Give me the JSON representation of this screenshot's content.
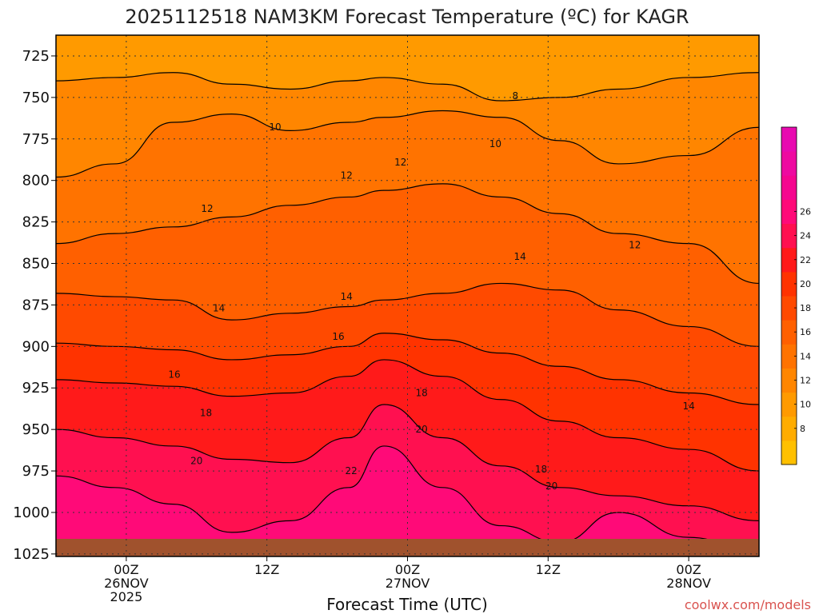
{
  "chart_data": {
    "type": "contour",
    "title": "2025112518 NAM3KM Forecast Temperature (ºC) for KAGR",
    "xlabel": "Forecast Time (UTC)",
    "ylabel": "",
    "credit": "coolwx.com/models",
    "y_ticks": [
      "725",
      "750",
      "775",
      "800",
      "825",
      "850",
      "875",
      "900",
      "925",
      "950",
      "975",
      "1000",
      "1025"
    ],
    "y_values": [
      725,
      750,
      775,
      800,
      825,
      850,
      875,
      900,
      925,
      950,
      975,
      1000,
      1025
    ],
    "ylim": [
      1025,
      725
    ],
    "x_ticks": [
      {
        "hour": 6,
        "l1": "00Z",
        "l2": "26NOV",
        "l3": "2025"
      },
      {
        "hour": 18,
        "l1": "12Z",
        "l2": "",
        "l3": ""
      },
      {
        "hour": 30,
        "l1": "00Z",
        "l2": "27NOV",
        "l3": ""
      },
      {
        "hour": 42,
        "l1": "12Z",
        "l2": "",
        "l3": ""
      },
      {
        "hour": 54,
        "l1": "00Z",
        "l2": "28NOV",
        "l3": ""
      }
    ],
    "xlim": [
      0,
      60
    ],
    "colorbar": {
      "levels": [
        6,
        8,
        10,
        12,
        14,
        16,
        18,
        20,
        22,
        24,
        26,
        28
      ],
      "labels": [
        "8",
        "10",
        "12",
        "14",
        "16",
        "18",
        "20",
        "22",
        "24",
        "26"
      ],
      "colors": [
        "#ffc000",
        "#ffac00",
        "#ff9a00",
        "#ff8600",
        "#ff7300",
        "#ff6000",
        "#ff4a00",
        "#ff3300",
        "#ff1a1a",
        "#ff1050",
        "#ff0a78",
        "#f5068f",
        "#ee0aa0",
        "#e80ab0"
      ]
    },
    "band_temps": [
      8,
      10,
      12,
      14,
      16,
      18,
      20,
      22
    ],
    "band_boundaries": [
      {
        "temp": 8,
        "pressure": [
          740,
          738,
          735,
          742,
          745,
          740,
          738,
          742,
          752,
          750,
          745,
          738,
          735
        ]
      },
      {
        "temp": 10,
        "pressure": [
          798,
          790,
          765,
          760,
          770,
          765,
          762,
          758,
          762,
          776,
          790,
          785,
          768
        ]
      },
      {
        "temp": 12,
        "pressure": [
          838,
          832,
          828,
          822,
          815,
          810,
          806,
          802,
          810,
          820,
          832,
          838,
          862
        ]
      },
      {
        "temp": 14,
        "pressure": [
          868,
          870,
          872,
          884,
          880,
          876,
          872,
          868,
          862,
          866,
          878,
          888,
          900
        ]
      },
      {
        "temp": 16,
        "pressure": [
          898,
          900,
          902,
          908,
          905,
          900,
          892,
          896,
          904,
          912,
          920,
          928,
          935
        ]
      },
      {
        "temp": 18,
        "pressure": [
          920,
          922,
          924,
          930,
          928,
          918,
          908,
          918,
          932,
          945,
          955,
          962,
          975
        ]
      },
      {
        "temp": 20,
        "pressure": [
          950,
          955,
          960,
          968,
          970,
          955,
          935,
          955,
          972,
          985,
          990,
          996,
          1005
        ]
      },
      {
        "temp": 22,
        "pressure": [
          978,
          985,
          995,
          1012,
          1005,
          985,
          960,
          985,
          1008,
          1018,
          1000,
          1015,
          1025
        ]
      }
    ],
    "boundary_hours": [
      0,
      5,
      10,
      15,
      20,
      25,
      28,
      33,
      38,
      43,
      48,
      54,
      60
    ],
    "contour_labels": [
      {
        "text": "8",
        "hour": 39.2,
        "pressure": 749
      },
      {
        "text": "10",
        "hour": 18.7,
        "pressure": 768
      },
      {
        "text": "10",
        "hour": 37.5,
        "pressure": 778
      },
      {
        "text": "12",
        "hour": 24.8,
        "pressure": 797
      },
      {
        "text": "12",
        "hour": 29.4,
        "pressure": 789
      },
      {
        "text": "12",
        "hour": 12.9,
        "pressure": 817
      },
      {
        "text": "12",
        "hour": 49.4,
        "pressure": 839
      },
      {
        "text": "14",
        "hour": 13.9,
        "pressure": 877
      },
      {
        "text": "14",
        "hour": 24.8,
        "pressure": 870
      },
      {
        "text": "14",
        "hour": 39.6,
        "pressure": 846
      },
      {
        "text": "16",
        "hour": 24.1,
        "pressure": 894
      },
      {
        "text": "16",
        "hour": 10.1,
        "pressure": 917
      },
      {
        "text": "14",
        "hour": 54.0,
        "pressure": 936
      },
      {
        "text": "18",
        "hour": 12.8,
        "pressure": 940
      },
      {
        "text": "18",
        "hour": 31.2,
        "pressure": 928
      },
      {
        "text": "18",
        "hour": 41.4,
        "pressure": 974
      },
      {
        "text": "20",
        "hour": 12.0,
        "pressure": 969
      },
      {
        "text": "20",
        "hour": 31.2,
        "pressure": 950
      },
      {
        "text": "20",
        "hour": 42.3,
        "pressure": 984
      },
      {
        "text": "22",
        "hour": 25.2,
        "pressure": 975
      }
    ]
  }
}
